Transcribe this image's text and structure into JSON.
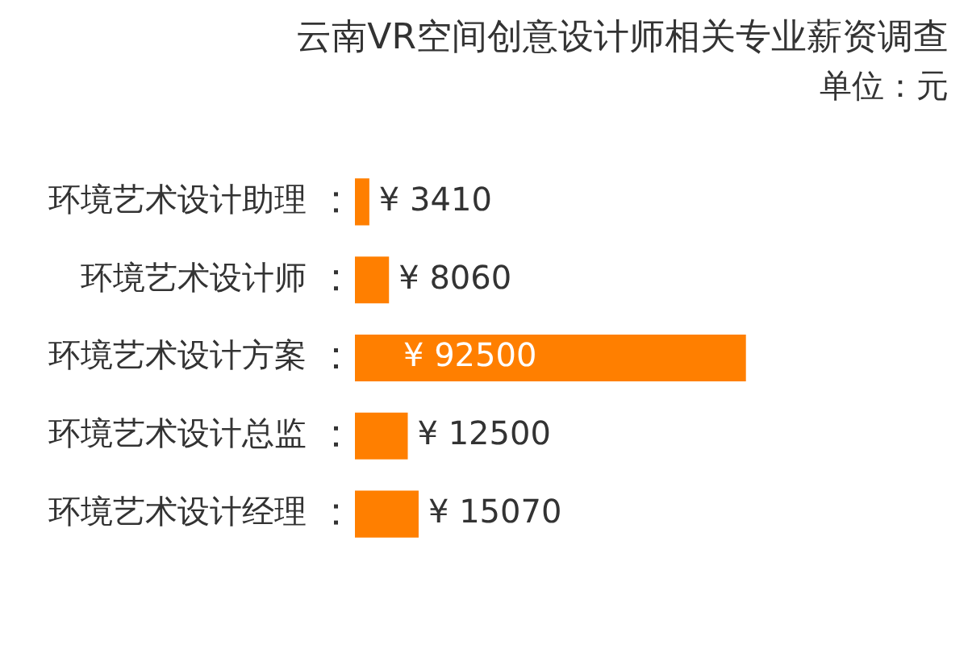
{
  "chart_data": {
    "type": "bar",
    "orientation": "horizontal",
    "title": "云南VR空间创意设计师相关专业薪资调查",
    "subtitle": "单位：元",
    "categories": [
      "环境艺术设计助理",
      "环境艺术设计师",
      "环境艺术设计方案",
      "环境艺术设计总监",
      "环境艺术设计经理"
    ],
    "values": [
      3410,
      8060,
      92500,
      12500,
      15070
    ],
    "value_labels": [
      "¥ 3410",
      "¥ 8060",
      "¥ 92500",
      "¥ 12500",
      "¥ 15070"
    ],
    "color": "#ff7f00",
    "tick_labels": "y",
    "grid": false,
    "legend": false
  }
}
